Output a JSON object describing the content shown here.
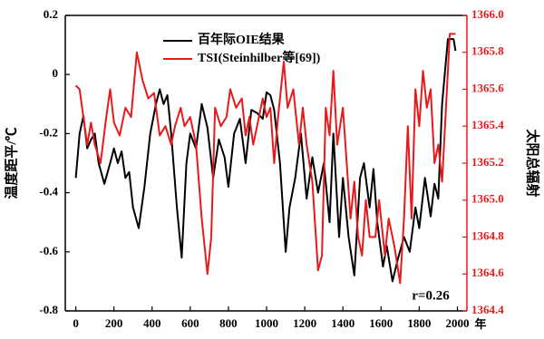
{
  "chart_data": {
    "type": "line",
    "xlabel": "年",
    "ylabel": "温度距平/℃",
    "y2label": "太阳总辐射",
    "annotation": "r=0.26",
    "xlim": [
      -55,
      2050
    ],
    "xticks": [
      0,
      200,
      400,
      600,
      800,
      1000,
      1200,
      1400,
      1600,
      1800,
      2000
    ],
    "ylim": [
      -0.8,
      0.2
    ],
    "yticks": [
      0.2,
      0,
      -0.2,
      -0.4,
      -0.6,
      -0.8
    ],
    "y2lim": [
      1364.4,
      1366.0
    ],
    "y2ticks": [
      {
        "value": 1366.0,
        "label": "1366.0"
      },
      1365.8,
      1365.6,
      1365.4,
      1365.2,
      {
        "value": 1365.0,
        "label": "1365.0"
      },
      1364.8,
      1364.6,
      1364.4
    ],
    "y2color": "#e8191b",
    "series": [
      {
        "name": "百年际OIE结果",
        "color": "#000000",
        "x": [
          0,
          20,
          40,
          60,
          80,
          100,
          120,
          150,
          180,
          200,
          220,
          240,
          260,
          280,
          300,
          330,
          360,
          390,
          420,
          440,
          460,
          480,
          500,
          530,
          555,
          580,
          600,
          630,
          660,
          690,
          720,
          750,
          780,
          800,
          830,
          860,
          890,
          920,
          950,
          980,
          1000,
          1020,
          1040,
          1070,
          1100,
          1120,
          1150,
          1180,
          1210,
          1240,
          1270,
          1300,
          1330,
          1350,
          1380,
          1400,
          1430,
          1460,
          1490,
          1510,
          1540,
          1560,
          1580,
          1610,
          1630,
          1660,
          1690,
          1720,
          1750,
          1780,
          1800,
          1830,
          1860,
          1880,
          1900,
          1920,
          1950,
          1980,
          1990
        ],
        "values": [
          -0.35,
          -0.2,
          -0.14,
          -0.25,
          -0.22,
          -0.2,
          -0.3,
          -0.37,
          -0.3,
          -0.25,
          -0.3,
          -0.26,
          -0.35,
          -0.33,
          -0.45,
          -0.52,
          -0.38,
          -0.2,
          -0.1,
          -0.05,
          -0.1,
          -0.07,
          -0.2,
          -0.45,
          -0.62,
          -0.3,
          -0.2,
          -0.25,
          -0.1,
          -0.18,
          -0.35,
          -0.22,
          -0.28,
          -0.38,
          -0.2,
          -0.15,
          -0.3,
          -0.12,
          -0.13,
          -0.15,
          -0.06,
          -0.07,
          -0.12,
          -0.3,
          -0.6,
          -0.45,
          -0.35,
          -0.2,
          -0.42,
          -0.28,
          -0.4,
          -0.3,
          -0.5,
          -0.2,
          -0.55,
          -0.35,
          -0.55,
          -0.68,
          -0.35,
          -0.3,
          -0.45,
          -0.32,
          -0.5,
          -0.65,
          -0.58,
          -0.7,
          -0.62,
          -0.55,
          -0.6,
          -0.45,
          -0.52,
          -0.35,
          -0.48,
          -0.37,
          -0.42,
          -0.1,
          0.12,
          0.12,
          0.08
        ]
      },
      {
        "name": "TSI(Steinhilber等[69])",
        "color": "#e8191b",
        "axis": "y2",
        "x": [
          0,
          20,
          40,
          60,
          80,
          100,
          130,
          160,
          180,
          200,
          230,
          260,
          290,
          320,
          350,
          380,
          410,
          440,
          470,
          500,
          520,
          550,
          570,
          600,
          630,
          660,
          690,
          710,
          730,
          760,
          790,
          810,
          840,
          870,
          890,
          910,
          930,
          960,
          980,
          1000,
          1020,
          1040,
          1060,
          1090,
          1110,
          1140,
          1170,
          1190,
          1210,
          1240,
          1270,
          1290,
          1310,
          1330,
          1350,
          1370,
          1400,
          1420,
          1440,
          1460,
          1480,
          1500,
          1520,
          1540,
          1570,
          1590,
          1620,
          1640,
          1670,
          1700,
          1720,
          1740,
          1760,
          1780,
          1800,
          1820,
          1840,
          1860,
          1880,
          1900,
          1920,
          1940,
          1960,
          1990
        ],
        "values": [
          1365.62,
          1365.6,
          1365.45,
          1365.3,
          1365.42,
          1365.3,
          1365.2,
          1365.45,
          1365.6,
          1365.42,
          1365.35,
          1365.5,
          1365.45,
          1365.8,
          1365.65,
          1365.55,
          1365.58,
          1365.35,
          1365.4,
          1365.3,
          1365.4,
          1365.5,
          1365.4,
          1365.45,
          1365.3,
          1364.9,
          1364.6,
          1364.8,
          1365.5,
          1365.4,
          1365.45,
          1365.6,
          1365.5,
          1365.55,
          1365.35,
          1365.45,
          1365.3,
          1365.45,
          1365.55,
          1365.45,
          1365.5,
          1365.2,
          1365.45,
          1365.75,
          1365.5,
          1365.6,
          1365.3,
          1365.5,
          1365.3,
          1365.1,
          1364.62,
          1364.7,
          1365.5,
          1365.35,
          1365.7,
          1365.3,
          1365.5,
          1365.2,
          1364.9,
          1365.1,
          1364.8,
          1364.7,
          1365.0,
          1364.8,
          1364.8,
          1365.0,
          1364.7,
          1364.9,
          1364.75,
          1364.55,
          1364.9,
          1365.4,
          1364.9,
          1365.6,
          1365.4,
          1365.7,
          1365.5,
          1365.6,
          1365.2,
          1365.3,
          1365.1,
          1365.5,
          1365.9,
          1365.9
        ]
      }
    ]
  }
}
